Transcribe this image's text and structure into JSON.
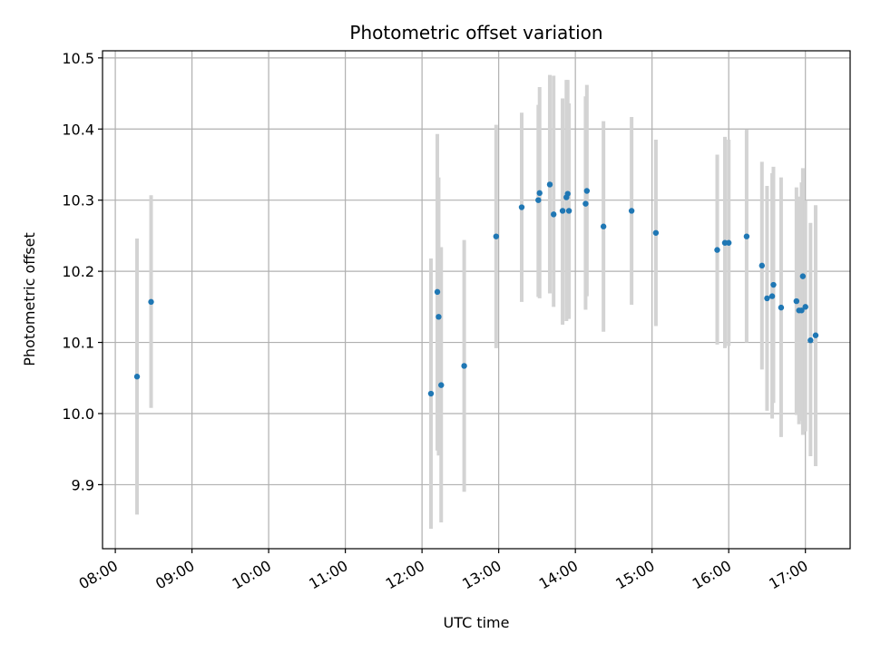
{
  "chart_data": {
    "type": "scatter",
    "title": "Photometric offset variation",
    "xlabel": "UTC time",
    "ylabel": "Photometric offset",
    "x_tick_labels": [
      "08:00",
      "09:00",
      "10:00",
      "11:00",
      "12:00",
      "13:00",
      "14:00",
      "15:00",
      "16:00",
      "17:00"
    ],
    "x_tick_values": [
      "08:00",
      "09:00",
      "10:00",
      "11:00",
      "12:00",
      "13:00",
      "14:00",
      "15:00",
      "16:00",
      "17:00"
    ],
    "xlim": [
      "07:50",
      "17:35"
    ],
    "y_tick_labels": [
      "9.9",
      "10.0",
      "10.1",
      "10.2",
      "10.3",
      "10.4",
      "10.5"
    ],
    "y_tick_values": [
      9.9,
      10.0,
      10.1,
      10.2,
      10.3,
      10.4,
      10.5
    ],
    "ylim": [
      9.81,
      10.51
    ],
    "grid": true,
    "colors": {
      "point": "#1f77b4",
      "errorbar": "#d3d3d3",
      "grid": "#b0b0b0"
    },
    "points": [
      {
        "x": "08:17",
        "y": 10.052,
        "ylo": 9.858,
        "yhi": 10.246
      },
      {
        "x": "08:28",
        "y": 10.157,
        "ylo": 10.008,
        "yhi": 10.307
      },
      {
        "x": "12:07",
        "y": 10.028,
        "ylo": 9.838,
        "yhi": 10.218
      },
      {
        "x": "12:12",
        "y": 10.171,
        "ylo": 9.948,
        "yhi": 10.393
      },
      {
        "x": "12:13",
        "y": 10.136,
        "ylo": 9.941,
        "yhi": 10.332
      },
      {
        "x": "12:15",
        "y": 10.04,
        "ylo": 9.847,
        "yhi": 10.234
      },
      {
        "x": "12:33",
        "y": 10.067,
        "ylo": 9.89,
        "yhi": 10.244
      },
      {
        "x": "12:58",
        "y": 10.249,
        "ylo": 10.092,
        "yhi": 10.406
      },
      {
        "x": "13:18",
        "y": 10.29,
        "ylo": 10.157,
        "yhi": 10.423
      },
      {
        "x": "13:31",
        "y": 10.3,
        "ylo": 10.164,
        "yhi": 10.434
      },
      {
        "x": "13:32",
        "y": 10.31,
        "ylo": 10.162,
        "yhi": 10.459
      },
      {
        "x": "13:40",
        "y": 10.322,
        "ylo": 10.169,
        "yhi": 10.476
      },
      {
        "x": "13:43",
        "y": 10.28,
        "ylo": 10.15,
        "yhi": 10.475
      },
      {
        "x": "13:50",
        "y": 10.285,
        "ylo": 10.125,
        "yhi": 10.443
      },
      {
        "x": "13:53",
        "y": 10.304,
        "ylo": 10.13,
        "yhi": 10.469
      },
      {
        "x": "13:54",
        "y": 10.309,
        "ylo": 10.148,
        "yhi": 10.469
      },
      {
        "x": "13:55",
        "y": 10.285,
        "ylo": 10.133,
        "yhi": 10.436
      },
      {
        "x": "14:08",
        "y": 10.295,
        "ylo": 10.146,
        "yhi": 10.446
      },
      {
        "x": "14:09",
        "y": 10.313,
        "ylo": 10.165,
        "yhi": 10.462
      },
      {
        "x": "14:22",
        "y": 10.263,
        "ylo": 10.115,
        "yhi": 10.411
      },
      {
        "x": "14:44",
        "y": 10.285,
        "ylo": 10.153,
        "yhi": 10.417
      },
      {
        "x": "15:03",
        "y": 10.254,
        "ylo": 10.123,
        "yhi": 10.385
      },
      {
        "x": "15:51",
        "y": 10.23,
        "ylo": 10.097,
        "yhi": 10.364
      },
      {
        "x": "15:57",
        "y": 10.24,
        "ylo": 10.092,
        "yhi": 10.389
      },
      {
        "x": "16:00",
        "y": 10.24,
        "ylo": 10.095,
        "yhi": 10.385
      },
      {
        "x": "16:14",
        "y": 10.249,
        "ylo": 10.1,
        "yhi": 10.399
      },
      {
        "x": "16:26",
        "y": 10.208,
        "ylo": 10.062,
        "yhi": 10.354
      },
      {
        "x": "16:30",
        "y": 10.162,
        "ylo": 10.004,
        "yhi": 10.32
      },
      {
        "x": "16:34",
        "y": 10.165,
        "ylo": 9.993,
        "yhi": 10.338
      },
      {
        "x": "16:35",
        "y": 10.181,
        "ylo": 10.015,
        "yhi": 10.347
      },
      {
        "x": "16:41",
        "y": 10.149,
        "ylo": 9.967,
        "yhi": 10.332
      },
      {
        "x": "16:53",
        "y": 10.158,
        "ylo": 9.998,
        "yhi": 10.318
      },
      {
        "x": "16:55",
        "y": 10.145,
        "ylo": 9.985,
        "yhi": 10.305
      },
      {
        "x": "16:57",
        "y": 10.145,
        "ylo": 9.99,
        "yhi": 10.325
      },
      {
        "x": "16:58",
        "y": 10.193,
        "ylo": 9.97,
        "yhi": 10.345
      },
      {
        "x": "17:00",
        "y": 10.15,
        "ylo": 9.975,
        "yhi": 10.3
      },
      {
        "x": "17:04",
        "y": 10.103,
        "ylo": 9.94,
        "yhi": 10.268
      },
      {
        "x": "17:08",
        "y": 10.11,
        "ylo": 9.926,
        "yhi": 10.293
      }
    ]
  }
}
